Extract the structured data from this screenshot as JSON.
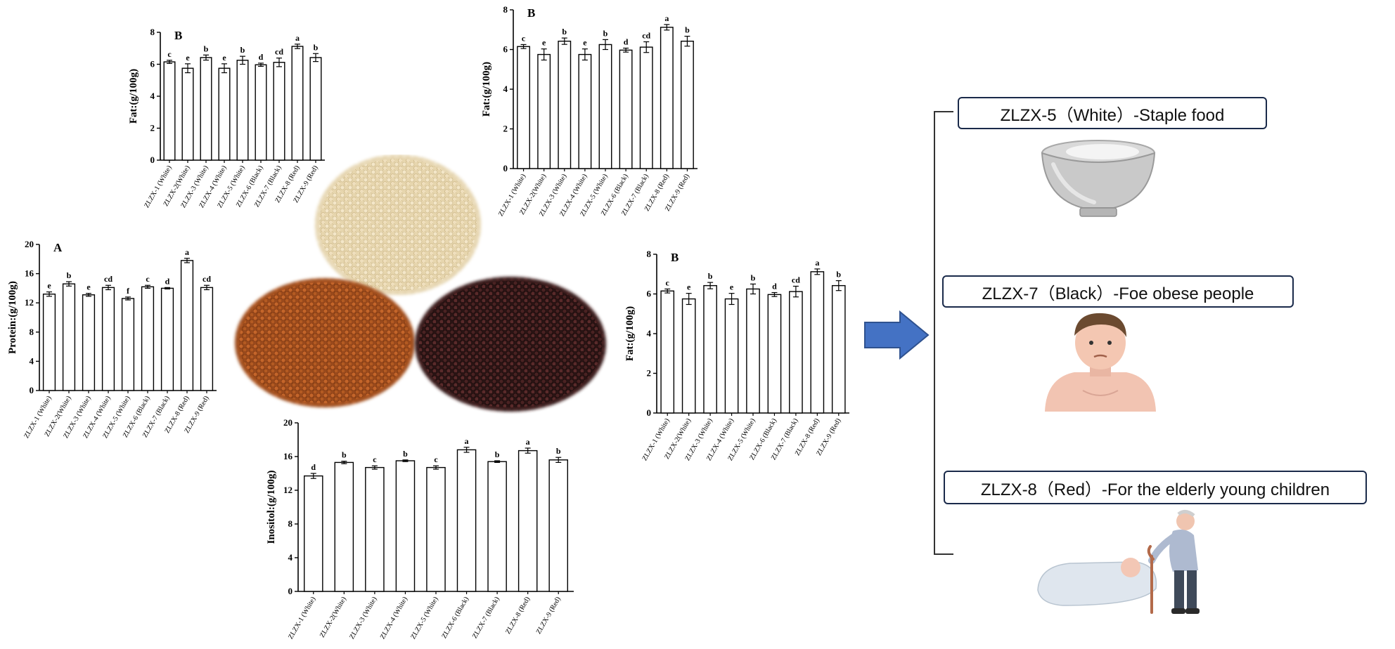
{
  "categories": [
    "ZLZX-1 (White)",
    "ZLZX-2(White)",
    "ZLZX-3 (White)",
    "ZLZX-4 (White)",
    "ZLZX-5 (White)",
    "ZLZX-6 (Black)",
    "ZLZX-7 (Black)",
    "ZLZX-8 (Red)",
    "ZLZX-9 (Red)"
  ],
  "chart_data": [
    {
      "id": "protein",
      "type": "bar",
      "panel_letter": "A",
      "ylabel": "Protein:(g/100g)",
      "ylim": [
        0,
        20
      ],
      "yticks": [
        0,
        4,
        8,
        12,
        16,
        20
      ],
      "categories": [
        "ZLZX-1 (White)",
        "ZLZX-2(White)",
        "ZLZX-3 (White)",
        "ZLZX-4 (White)",
        "ZLZX-5 (White)",
        "ZLZX-6 (Black)",
        "ZLZX-7 (Black)",
        "ZLZX-8 (Red)",
        "ZLZX-9 (Red)"
      ],
      "values": [
        13.2,
        14.6,
        13.1,
        14.1,
        12.6,
        14.2,
        14.0,
        17.8,
        14.1
      ],
      "errors": [
        0.3,
        0.3,
        0.2,
        0.3,
        0.2,
        0.2,
        0.1,
        0.3,
        0.3
      ],
      "significance": [
        "e",
        "b",
        "e",
        "cd",
        "f",
        "c",
        "d",
        "a",
        "cd"
      ]
    },
    {
      "id": "fat-top-left",
      "type": "bar",
      "panel_letter": "B",
      "ylabel": "Fat:(g/100g)",
      "ylim": [
        0,
        8
      ],
      "yticks": [
        0,
        2,
        4,
        6,
        8
      ],
      "categories": [
        "ZLZX-1 (White)",
        "ZLZX-2(White)",
        "ZLZX-3 (White)",
        "ZLZX-4 (White)",
        "ZLZX-5 (White)",
        "ZLZX-6 (Black)",
        "ZLZX-7 (Black)",
        "ZLZX-8 (Red)",
        "ZLZX-9 (Red)"
      ],
      "values": [
        6.15,
        5.75,
        6.42,
        5.75,
        6.25,
        5.97,
        6.12,
        7.12,
        6.42
      ],
      "errors": [
        0.1,
        0.28,
        0.16,
        0.28,
        0.25,
        0.1,
        0.27,
        0.14,
        0.25
      ],
      "significance": [
        "c",
        "e",
        "b",
        "e",
        "b",
        "d",
        "cd",
        "a",
        "b"
      ]
    },
    {
      "id": "fat-top-right",
      "type": "bar",
      "panel_letter": "B",
      "ylabel": "Fat:(g/100g)",
      "ylim": [
        0,
        8
      ],
      "yticks": [
        0,
        2,
        4,
        6,
        8
      ],
      "categories": [
        "ZLZX-1 (White)",
        "ZLZX-2(White)",
        "ZLZX-3 (White)",
        "ZLZX-4 (White)",
        "ZLZX-5 (White)",
        "ZLZX-6 (Black)",
        "ZLZX-7 (Black)",
        "ZLZX-8 (Red)",
        "ZLZX-9 (Red)"
      ],
      "values": [
        6.15,
        5.75,
        6.42,
        5.75,
        6.25,
        5.97,
        6.12,
        7.12,
        6.42
      ],
      "errors": [
        0.1,
        0.28,
        0.16,
        0.28,
        0.25,
        0.1,
        0.27,
        0.14,
        0.25
      ],
      "significance": [
        "c",
        "e",
        "b",
        "e",
        "b",
        "d",
        "cd",
        "a",
        "b"
      ]
    },
    {
      "id": "fat-middle",
      "type": "bar",
      "panel_letter": "B",
      "ylabel": "Fat:(g/100g)",
      "ylim": [
        0,
        8
      ],
      "yticks": [
        0,
        2,
        4,
        6,
        8
      ],
      "categories": [
        "ZLZX-1 (White)",
        "ZLZX-2(White)",
        "ZLZX-3 (White)",
        "ZLZX-4 (White)",
        "ZLZX-5 (White)",
        "ZLZX-6 (Black)",
        "ZLZX-7 (Black)",
        "ZLZX-8 (Red)",
        "ZLZX-9 (Red)"
      ],
      "values": [
        6.15,
        5.75,
        6.42,
        5.75,
        6.25,
        5.97,
        6.12,
        7.12,
        6.42
      ],
      "errors": [
        0.1,
        0.28,
        0.16,
        0.28,
        0.25,
        0.1,
        0.27,
        0.14,
        0.25
      ],
      "significance": [
        "c",
        "e",
        "b",
        "e",
        "b",
        "d",
        "cd",
        "a",
        "b"
      ]
    },
    {
      "id": "inositol",
      "type": "bar",
      "panel_letter": "",
      "ylabel": "Inositol:(g/100g)",
      "ylim": [
        0,
        20
      ],
      "yticks": [
        0,
        4,
        8,
        12,
        16,
        20
      ],
      "categories": [
        "ZLZX-1 (White)",
        "ZLZX-2(White)",
        "ZLZX-3 (White)",
        "ZLZX-4 (White)",
        "ZLZX-5 (White)",
        "ZLZX-6 (Black)",
        "ZLZX-7 (Black)",
        "ZLZX-8 (Red)",
        "ZLZX-9 (Red)"
      ],
      "values": [
        13.7,
        15.3,
        14.7,
        15.5,
        14.7,
        16.8,
        15.4,
        16.7,
        15.6
      ],
      "errors": [
        0.3,
        0.15,
        0.2,
        0.1,
        0.2,
        0.3,
        0.1,
        0.3,
        0.3
      ],
      "significance": [
        "d",
        "b",
        "c",
        "b",
        "c",
        "a",
        "b",
        "a",
        "b"
      ]
    }
  ],
  "recommendations": [
    {
      "label": "ZLZX-5（White）-Staple food",
      "illustration": "bowl-of-rice"
    },
    {
      "label": "ZLZX-7（Black）-Foe obese people",
      "illustration": "obese-boy"
    },
    {
      "label": "ZLZX-8（Red）-For the elderly young children",
      "illustration": "elderly-and-baby"
    }
  ],
  "grain_samples": [
    "white-quinoa",
    "red-quinoa",
    "black-quinoa"
  ],
  "colors": {
    "bar_fill": "#ffffff",
    "axis": "#000000",
    "arrow": "#4472c4",
    "arrow_border": "#2f528f",
    "box_border": "#1a2a4a"
  }
}
